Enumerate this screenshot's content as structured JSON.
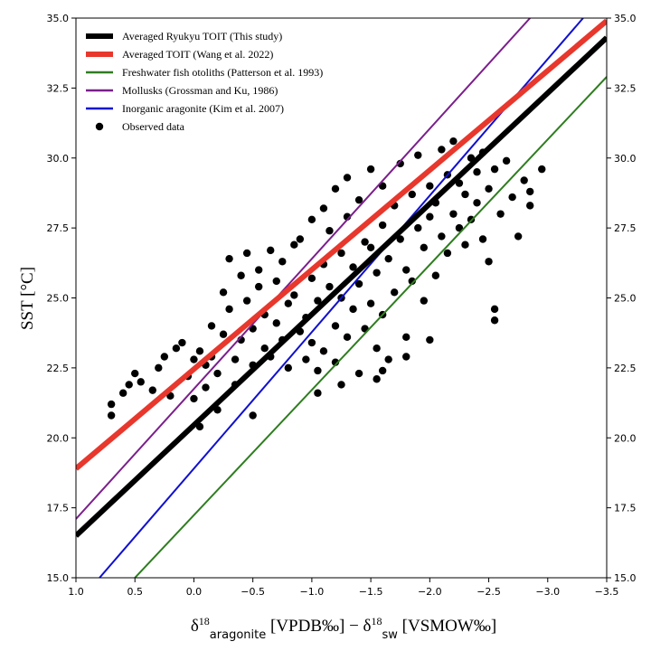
{
  "chart_data": {
    "type": "scatter",
    "title": "",
    "xlabel": {
      "base": "δ",
      "sup1": "18",
      "sub1": "aragonite",
      "unit1": " [VPDB‰] − ",
      "base2": "δ",
      "sup2": "18",
      "sub2": "sw",
      "unit2": " [VSMOW‰]"
    },
    "ylabel": "SST [°C]",
    "xlim": [
      1.0,
      -3.5
    ],
    "ylim": [
      15.0,
      35.0
    ],
    "xticks": [
      "1.0",
      "0.5",
      "0.0",
      "−0.5",
      "−1.0",
      "−1.5",
      "−2.0",
      "−2.5",
      "−3.0",
      "−3.5"
    ],
    "xtick_values": [
      1.0,
      0.5,
      0.0,
      -0.5,
      -1.0,
      -1.5,
      -2.0,
      -2.5,
      -3.0,
      -3.5
    ],
    "yticks": [
      "15.0",
      "17.5",
      "20.0",
      "22.5",
      "25.0",
      "27.5",
      "30.0",
      "32.5",
      "35.0"
    ],
    "ytick_values": [
      15.0,
      17.5,
      20.0,
      22.5,
      25.0,
      27.5,
      30.0,
      32.5,
      35.0
    ],
    "lines": [
      {
        "name": "Averaged Ryukyu TOIT (This study)",
        "color": "#000000",
        "width": 6,
        "x": [
          1.0,
          -3.5
        ],
        "y": [
          16.5,
          34.3
        ]
      },
      {
        "name": "Averaged TOIT (Wang et al. 2022)",
        "color": "#e8372c",
        "width": 6,
        "x": [
          1.0,
          -3.5
        ],
        "y": [
          18.9,
          34.9
        ]
      },
      {
        "name": "Freshwater fish otoliths (Patterson et al. 1993)",
        "color": "#2e7d1f",
        "width": 2,
        "x": [
          0.5,
          -3.5
        ],
        "y": [
          15.0,
          32.9
        ]
      },
      {
        "name": "Mollusks (Grossman and Ku, 1986)",
        "color": "#7b1f8c",
        "width": 2,
        "x": [
          1.0,
          -2.85
        ],
        "y": [
          17.1,
          35.0
        ]
      },
      {
        "name": "Inorganic aragonite (Kim et al. 2007)",
        "color": "#1010d0",
        "width": 2,
        "x": [
          0.8,
          -3.3
        ],
        "y": [
          15.0,
          35.0
        ]
      }
    ],
    "scatter_name": "Observed data",
    "scatter_color": "#000000",
    "observed_data": [
      [
        0.7,
        20.8
      ],
      [
        0.7,
        21.2
      ],
      [
        0.6,
        21.6
      ],
      [
        0.55,
        21.9
      ],
      [
        0.5,
        22.3
      ],
      [
        0.45,
        22.0
      ],
      [
        0.35,
        21.7
      ],
      [
        0.3,
        22.5
      ],
      [
        0.25,
        22.9
      ],
      [
        0.2,
        21.5
      ],
      [
        0.15,
        23.2
      ],
      [
        0.1,
        23.4
      ],
      [
        0.05,
        22.2
      ],
      [
        0.0,
        21.4
      ],
      [
        0.0,
        22.8
      ],
      [
        -0.05,
        23.1
      ],
      [
        -0.05,
        20.4
      ],
      [
        -0.1,
        21.8
      ],
      [
        -0.1,
        22.6
      ],
      [
        -0.15,
        24.0
      ],
      [
        -0.2,
        22.3
      ],
      [
        -0.2,
        21.0
      ],
      [
        -0.25,
        23.7
      ],
      [
        -0.25,
        25.2
      ],
      [
        -0.3,
        24.6
      ],
      [
        -0.3,
        26.4
      ],
      [
        -0.35,
        21.9
      ],
      [
        -0.35,
        22.8
      ],
      [
        -0.4,
        23.5
      ],
      [
        -0.4,
        25.8
      ],
      [
        -0.45,
        24.9
      ],
      [
        -0.45,
        26.6
      ],
      [
        -0.5,
        22.6
      ],
      [
        -0.5,
        20.8
      ],
      [
        -0.5,
        23.9
      ],
      [
        -0.55,
        26.0
      ],
      [
        -0.55,
        25.4
      ],
      [
        -0.6,
        23.2
      ],
      [
        -0.6,
        24.4
      ],
      [
        -0.65,
        26.7
      ],
      [
        -0.65,
        22.9
      ],
      [
        -0.7,
        25.6
      ],
      [
        -0.7,
        24.1
      ],
      [
        -0.75,
        23.5
      ],
      [
        -0.75,
        26.3
      ],
      [
        -0.8,
        24.8
      ],
      [
        -0.8,
        22.5
      ],
      [
        -0.85,
        26.9
      ],
      [
        -0.85,
        25.1
      ],
      [
        -0.9,
        23.8
      ],
      [
        -0.9,
        27.1
      ],
      [
        -0.95,
        24.3
      ],
      [
        -0.95,
        22.8
      ],
      [
        -1.0,
        25.7
      ],
      [
        -1.0,
        23.4
      ],
      [
        -1.0,
        27.8
      ],
      [
        -1.05,
        24.9
      ],
      [
        -1.05,
        22.4
      ],
      [
        -1.1,
        26.2
      ],
      [
        -1.1,
        28.2
      ],
      [
        -1.1,
        23.1
      ],
      [
        -1.15,
        25.4
      ],
      [
        -1.15,
        27.4
      ],
      [
        -1.2,
        24.0
      ],
      [
        -1.2,
        22.7
      ],
      [
        -1.2,
        28.9
      ],
      [
        -1.25,
        26.6
      ],
      [
        -1.25,
        25.0
      ],
      [
        -1.3,
        23.6
      ],
      [
        -1.3,
        27.9
      ],
      [
        -1.3,
        29.3
      ],
      [
        -1.35,
        24.6
      ],
      [
        -1.35,
        26.1
      ],
      [
        -1.4,
        22.3
      ],
      [
        -1.4,
        25.5
      ],
      [
        -1.4,
        28.5
      ],
      [
        -1.45,
        23.9
      ],
      [
        -1.45,
        27.0
      ],
      [
        -1.5,
        24.8
      ],
      [
        -1.5,
        26.8
      ],
      [
        -1.5,
        29.6
      ],
      [
        -1.55,
        23.2
      ],
      [
        -1.55,
        25.9
      ],
      [
        -1.6,
        27.6
      ],
      [
        -1.6,
        24.4
      ],
      [
        -1.6,
        29.0
      ],
      [
        -1.65,
        26.4
      ],
      [
        -1.65,
        22.8
      ],
      [
        -1.7,
        25.2
      ],
      [
        -1.7,
        28.3
      ],
      [
        -1.75,
        27.1
      ],
      [
        -1.75,
        29.8
      ],
      [
        -1.8,
        26.0
      ],
      [
        -1.8,
        23.6
      ],
      [
        -1.85,
        28.7
      ],
      [
        -1.85,
        25.6
      ],
      [
        -1.9,
        27.5
      ],
      [
        -1.9,
        30.1
      ],
      [
        -1.95,
        26.8
      ],
      [
        -1.95,
        24.9
      ],
      [
        -2.0,
        29.0
      ],
      [
        -2.0,
        27.9
      ],
      [
        -2.05,
        28.4
      ],
      [
        -2.05,
        25.8
      ],
      [
        -2.1,
        30.3
      ],
      [
        -2.1,
        27.2
      ],
      [
        -2.15,
        26.6
      ],
      [
        -2.15,
        29.4
      ],
      [
        -2.2,
        28.0
      ],
      [
        -2.2,
        30.6
      ],
      [
        -2.25,
        27.5
      ],
      [
        -2.25,
        29.1
      ],
      [
        -2.3,
        26.9
      ],
      [
        -2.3,
        28.7
      ],
      [
        -2.35,
        30.0
      ],
      [
        -2.35,
        27.8
      ],
      [
        -2.4,
        28.4
      ],
      [
        -2.4,
        29.5
      ],
      [
        -2.45,
        27.1
      ],
      [
        -2.45,
        30.2
      ],
      [
        -2.5,
        28.9
      ],
      [
        -2.5,
        26.3
      ],
      [
        -2.55,
        29.6
      ],
      [
        -2.55,
        24.6
      ],
      [
        -2.55,
        24.2
      ],
      [
        -2.6,
        28.0
      ],
      [
        -2.65,
        29.9
      ],
      [
        -2.7,
        28.6
      ],
      [
        -2.75,
        27.2
      ],
      [
        -2.8,
        29.2
      ],
      [
        -2.85,
        28.8
      ],
      [
        -2.85,
        28.3
      ],
      [
        -2.95,
        29.6
      ],
      [
        -1.55,
        22.1
      ],
      [
        -1.6,
        22.4
      ],
      [
        -2.0,
        23.5
      ],
      [
        -1.8,
        22.9
      ],
      [
        -1.25,
        21.9
      ],
      [
        -1.05,
        21.6
      ],
      [
        -0.15,
        22.9
      ]
    ]
  }
}
